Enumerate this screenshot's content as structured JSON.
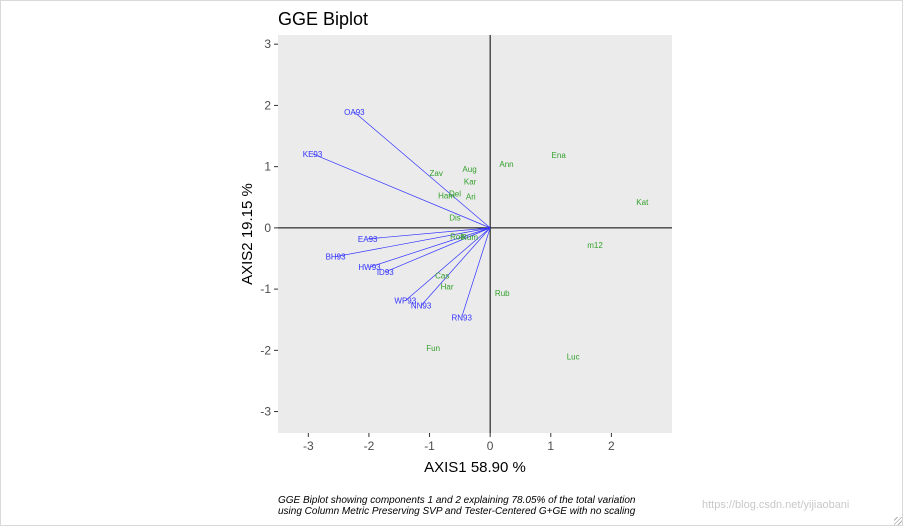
{
  "chart_data": {
    "type": "scatter",
    "title": "GGE Biplot",
    "xlabel": "AXIS1 58.90 %",
    "ylabel": "AXIS2 19.15 %",
    "xlim": [
      -3.5,
      3.0
    ],
    "ylim": [
      -3.35,
      3.15
    ],
    "xticks": [
      -3,
      -2,
      -1,
      0,
      1,
      2
    ],
    "yticks": [
      -3,
      -2,
      -1,
      0,
      1,
      2,
      3
    ],
    "environment_color": "#3333ff",
    "genotype_color": "#33a02c",
    "panel_color": "#ebebeb",
    "environments": [
      {
        "name": "OA93",
        "x": -2.24,
        "y": 1.89
      },
      {
        "name": "KE93",
        "x": -2.93,
        "y": 1.21
      },
      {
        "name": "EA93",
        "x": -2.02,
        "y": -0.18
      },
      {
        "name": "BH93",
        "x": -2.55,
        "y": -0.47
      },
      {
        "name": "HW93",
        "x": -1.99,
        "y": -0.64
      },
      {
        "name": "ID93",
        "x": -1.73,
        "y": -0.72
      },
      {
        "name": "WP93",
        "x": -1.4,
        "y": -1.19
      },
      {
        "name": "NN93",
        "x": -1.14,
        "y": -1.27
      },
      {
        "name": "RN93",
        "x": -0.47,
        "y": -1.46
      }
    ],
    "genotypes": [
      {
        "name": "Ena",
        "x": 1.13,
        "y": 1.19
      },
      {
        "name": "Ann",
        "x": 0.27,
        "y": 1.04
      },
      {
        "name": "Aug",
        "x": -0.34,
        "y": 0.96
      },
      {
        "name": "Zav",
        "x": -0.89,
        "y": 0.9
      },
      {
        "name": "Kar",
        "x": -0.33,
        "y": 0.76
      },
      {
        "name": "Kat",
        "x": 2.51,
        "y": 0.42
      },
      {
        "name": "Ham",
        "x": -0.72,
        "y": 0.53
      },
      {
        "name": "Del",
        "x": -0.58,
        "y": 0.56
      },
      {
        "name": "Ari",
        "x": -0.32,
        "y": 0.51
      },
      {
        "name": "Dis",
        "x": -0.58,
        "y": 0.17
      },
      {
        "name": "m12",
        "x": 1.73,
        "y": -0.28
      },
      {
        "name": "Rob",
        "x": -0.54,
        "y": -0.14
      },
      {
        "name": "Rum",
        "x": -0.34,
        "y": -0.15
      },
      {
        "name": "Cas",
        "x": -0.79,
        "y": -0.78
      },
      {
        "name": "Har",
        "x": -0.71,
        "y": -0.96
      },
      {
        "name": "Rub",
        "x": 0.2,
        "y": -1.06
      },
      {
        "name": "Fun",
        "x": -0.94,
        "y": -1.96
      },
      {
        "name": "Luc",
        "x": 1.37,
        "y": -2.1
      }
    ]
  },
  "caption": {
    "line1": "GGE Biplot showing components 1 and 2 explaining 78.05% of the total variation",
    "line2": "using Column Metric Preserving SVP and Tester-Centered G+GE with no scaling"
  },
  "watermark": "https://blog.csdn.net/yijiaobani"
}
